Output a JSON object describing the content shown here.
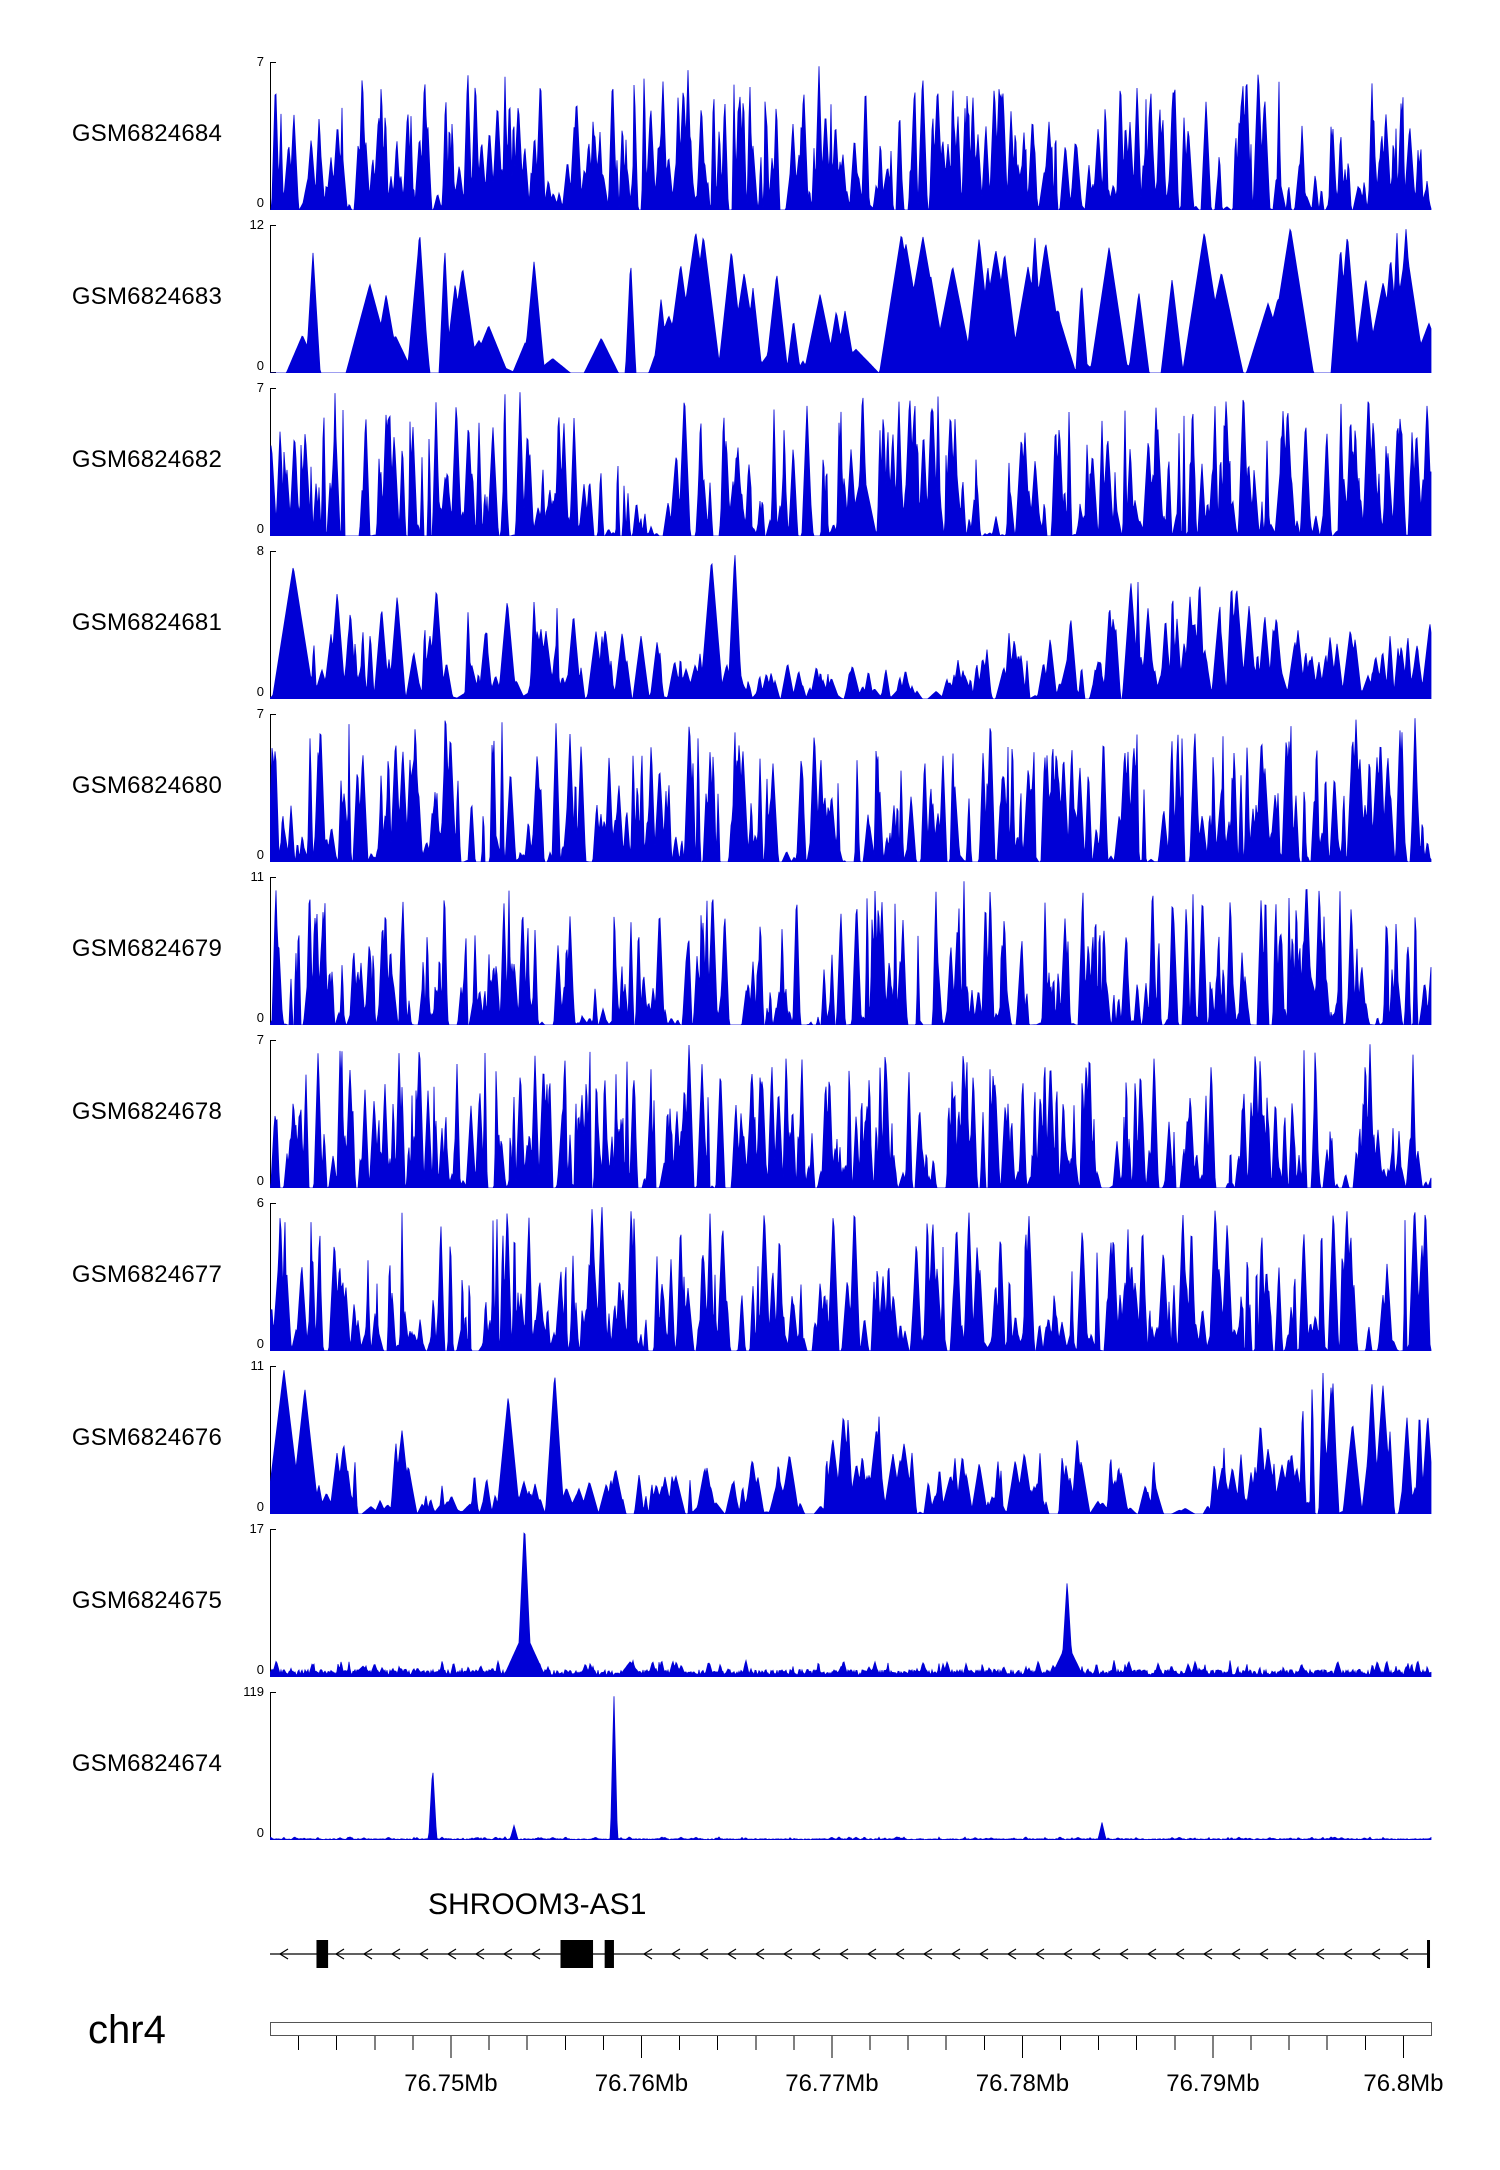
{
  "chart_data": {
    "type": "area",
    "description": "Genome browser read-coverage tracks for GEO samples over chr4 with SHROOM3-AS1 gene model and genomic coordinate ruler",
    "chromosome": "chr4",
    "signal_color": "#0000d6",
    "x_axis": {
      "range_mb": [
        76.7405,
        76.8015
      ],
      "minor_tick_mb": 0.002,
      "major_ticks": [
        {
          "value": 76.75,
          "label": "76.75Mb"
        },
        {
          "value": 76.76,
          "label": "76.76Mb"
        },
        {
          "value": 76.77,
          "label": "76.77Mb"
        },
        {
          "value": 76.78,
          "label": "76.78Mb"
        },
        {
          "value": 76.79,
          "label": "76.79Mb"
        },
        {
          "value": 76.8,
          "label": "76.8Mb"
        }
      ]
    },
    "tracks": [
      {
        "label": "GSM6824684",
        "ymax": 7,
        "ymin": 0,
        "profile": {
          "kind": "dense",
          "seed": 101,
          "count": 500,
          "wmin": 1.5,
          "wmax": 6,
          "pow": 1.7
        }
      },
      {
        "label": "GSM6824683",
        "ymax": 12,
        "ymin": 0,
        "profile": {
          "kind": "dense",
          "seed": 202,
          "count": 85,
          "wmin": 5,
          "wmax": 24,
          "pow": 0.85
        }
      },
      {
        "label": "GSM6824682",
        "ymax": 7,
        "ymin": 0,
        "profile": {
          "kind": "dense",
          "seed": 303,
          "count": 480,
          "wmin": 1.5,
          "wmax": 6,
          "pow": 2.0,
          "peaks": [
            {
              "x": 0.51,
              "h": 1.0,
              "w": 0.004
            },
            {
              "x": 0.51,
              "h": 0.45,
              "w": 0.012
            }
          ]
        }
      },
      {
        "label": "GSM6824681",
        "ymax": 8,
        "ymin": 0,
        "profile": {
          "kind": "dense",
          "seed": 404,
          "count": 360,
          "wmin": 2,
          "wmax": 9,
          "pow": 1.6,
          "env": true,
          "peaks": [
            {
              "x": 0.02,
              "h": 0.85,
              "w": 0.018
            },
            {
              "x": 0.38,
              "h": 0.9,
              "w": 0.01
            },
            {
              "x": 0.4,
              "h": 0.95,
              "w": 0.006
            }
          ]
        }
      },
      {
        "label": "GSM6824680",
        "ymax": 7,
        "ymin": 0,
        "profile": {
          "kind": "dense",
          "seed": 505,
          "count": 450,
          "wmin": 1.5,
          "wmax": 6,
          "pow": 1.9,
          "peaks": [
            {
              "x": 0.125,
              "h": 0.95,
              "w": 0.004
            },
            {
              "x": 0.62,
              "h": 1.0,
              "w": 0.004
            }
          ]
        }
      },
      {
        "label": "GSM6824679",
        "ymax": 11,
        "ymin": 0,
        "profile": {
          "kind": "dense",
          "seed": 606,
          "count": 460,
          "wmin": 1.5,
          "wmax": 5,
          "pow": 2.2,
          "peaks": [
            {
              "x": 0.892,
              "h": 1.0,
              "w": 0.005
            },
            {
              "x": 0.892,
              "h": 0.45,
              "w": 0.014
            }
          ]
        }
      },
      {
        "label": "GSM6824678",
        "ymax": 7,
        "ymin": 0,
        "profile": {
          "kind": "dense",
          "seed": 707,
          "count": 430,
          "wmin": 1.5,
          "wmax": 5,
          "pow": 1.35
        }
      },
      {
        "label": "GSM6824677",
        "ymax": 6,
        "ymin": 0,
        "profile": {
          "kind": "dense",
          "seed": 808,
          "count": 450,
          "wmin": 1.5,
          "wmax": 6,
          "pow": 2.1,
          "peaks": [
            {
              "x": 0.985,
              "h": 1.0,
              "w": 0.005
            }
          ]
        }
      },
      {
        "label": "GSM6824676",
        "ymax": 11,
        "ymin": 0,
        "profile": {
          "kind": "dense",
          "seed": 909,
          "count": 300,
          "wmin": 2,
          "wmax": 10,
          "pow": 1.7,
          "env": true,
          "peaks": [
            {
              "x": 0.012,
              "h": 0.92,
              "w": 0.015
            },
            {
              "x": 0.03,
              "h": 0.8,
              "w": 0.012
            },
            {
              "x": 0.205,
              "h": 0.75,
              "w": 0.01
            },
            {
              "x": 0.245,
              "h": 0.9,
              "w": 0.008
            }
          ]
        }
      },
      {
        "label": "GSM6824675",
        "ymax": 17,
        "ymin": 0,
        "profile": {
          "kind": "peaks",
          "seed": 110,
          "base": 0.035,
          "peaks": [
            {
              "x": 0.219,
              "h": 1.0,
              "w": 0.006
            },
            {
              "x": 0.219,
              "h": 0.3,
              "w": 0.018
            },
            {
              "x": 0.686,
              "h": 0.62,
              "w": 0.005
            },
            {
              "x": 0.686,
              "h": 0.22,
              "w": 0.014
            },
            {
              "x": 0.31,
              "h": 0.1,
              "w": 0.01
            },
            {
              "x": 0.08,
              "h": 0.07,
              "w": 0.01
            }
          ]
        }
      },
      {
        "label": "GSM6824674",
        "ymax": 119,
        "ymin": 0,
        "profile": {
          "kind": "peaks",
          "seed": 211,
          "base": 0.007,
          "peaks": [
            {
              "x": 0.14,
              "h": 0.5,
              "w": 0.0035
            },
            {
              "x": 0.21,
              "h": 0.1,
              "w": 0.0035
            },
            {
              "x": 0.296,
              "h": 1.0,
              "w": 0.003
            },
            {
              "x": 0.716,
              "h": 0.12,
              "w": 0.0035
            }
          ]
        }
      }
    ],
    "gene_track": {
      "gene_label": "SHROOM3-AS1",
      "strand": "minus",
      "exons": [
        {
          "x": 0.04,
          "w": 0.01
        },
        {
          "x": 0.25,
          "w": 0.028
        },
        {
          "x": 0.288,
          "w": 0.008
        }
      ],
      "end_bar_x": 0.997
    }
  }
}
